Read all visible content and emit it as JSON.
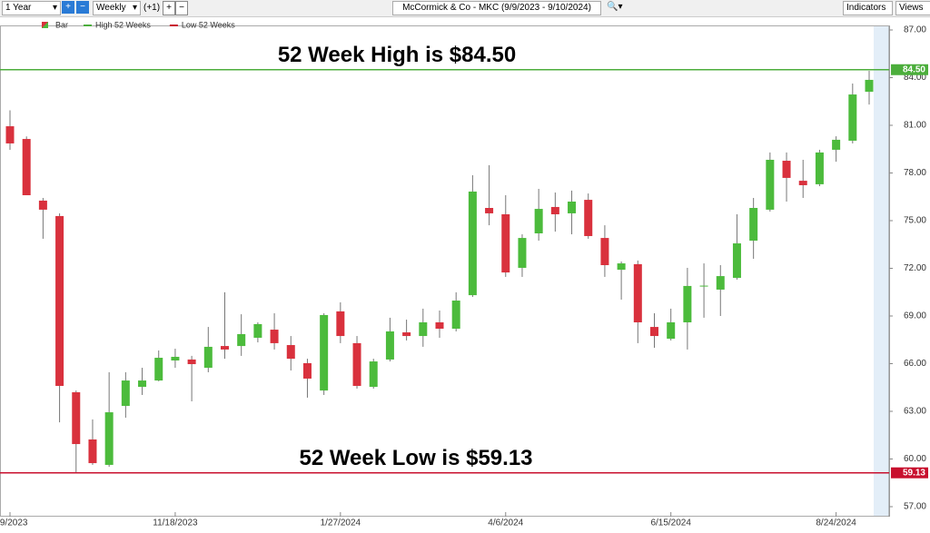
{
  "toolbar": {
    "range": "1 Year",
    "interval": "Weekly",
    "plus": "(+1)",
    "symbol": "McCormick & Co - MKC (9/9/2023 - 9/10/2024)",
    "indicators": "Indicators",
    "views": "Views"
  },
  "chart_data": {
    "type": "candlestick",
    "up_color": "#4cbb3c",
    "down_color": "#d9313d",
    "categories": [
      "9/9/2023",
      null,
      null,
      null,
      null,
      null,
      null,
      null,
      null,
      null,
      "11/18/2023",
      null,
      null,
      null,
      null,
      null,
      null,
      null,
      null,
      null,
      "1/27/2024",
      null,
      null,
      null,
      null,
      null,
      null,
      null,
      null,
      null,
      "4/6/2024",
      null,
      null,
      null,
      null,
      null,
      null,
      null,
      null,
      null,
      "6/15/2024",
      null,
      null,
      null,
      null,
      null,
      null,
      null,
      null,
      null,
      "8/24/2024",
      null,
      null
    ],
    "series": [
      {
        "name": "Bar",
        "open": [
          80.94,
          80.14,
          76.26,
          75.29,
          64.2,
          61.23,
          59.63,
          63.34,
          64.54,
          64.94,
          66.2,
          66.26,
          65.74,
          67.11,
          67.11,
          67.63,
          68.14,
          67.17,
          66.03,
          64.31,
          69.29,
          67.29,
          64.54,
          66.26,
          67.97,
          67.74,
          68.6,
          68.2,
          70.31,
          75.8,
          75.4,
          72.03,
          74.2,
          75.86,
          75.46,
          76.31,
          73.91,
          71.91,
          72.26,
          68.31,
          67.57,
          68.6,
          70.89,
          70.66,
          71.4,
          73.74,
          75.69,
          78.77,
          77.51,
          77.29,
          79.46,
          80.03,
          83.11
        ],
        "high": [
          81.94,
          80.3,
          76.43,
          75.46,
          64.31,
          62.49,
          65.46,
          65.46,
          65.74,
          66.83,
          66.94,
          66.49,
          68.31,
          70.49,
          69.11,
          68.6,
          69.17,
          67.74,
          66.31,
          69.17,
          69.86,
          67.74,
          66.31,
          68.89,
          68.77,
          69.46,
          69.34,
          70.49,
          77.86,
          78.49,
          76.6,
          74.14,
          77.0,
          76.77,
          76.89,
          76.71,
          74.71,
          72.43,
          72.49,
          69.17,
          69.46,
          72.03,
          72.31,
          72.2,
          75.4,
          76.43,
          79.29,
          79.29,
          78.83,
          79.46,
          80.31,
          83.63,
          84.43
        ],
        "low": [
          79.46,
          76.6,
          73.86,
          62.31,
          59.17,
          59.63,
          59.51,
          62.6,
          64.03,
          64.89,
          65.74,
          63.63,
          65.46,
          66.31,
          66.49,
          67.34,
          66.89,
          65.57,
          63.86,
          64.03,
          67.29,
          64.43,
          64.43,
          66.14,
          67.46,
          67.06,
          67.63,
          68.03,
          70.2,
          74.71,
          71.46,
          71.46,
          73.74,
          74.31,
          74.14,
          73.86,
          71.46,
          70.03,
          67.29,
          67.0,
          67.46,
          66.89,
          68.89,
          69.0,
          71.29,
          72.6,
          75.57,
          76.2,
          76.43,
          77.17,
          78.71,
          79.86,
          82.31
        ],
        "close": [
          79.86,
          76.6,
          75.69,
          64.6,
          60.94,
          59.74,
          62.94,
          64.94,
          64.94,
          66.37,
          66.43,
          65.97,
          67.06,
          66.89,
          67.86,
          68.49,
          67.29,
          66.31,
          65.06,
          69.06,
          67.74,
          64.6,
          66.14,
          68.03,
          67.74,
          68.6,
          68.2,
          69.97,
          76.83,
          75.46,
          71.74,
          73.91,
          75.74,
          75.4,
          76.2,
          74.03,
          72.2,
          72.31,
          68.6,
          67.74,
          68.6,
          70.89,
          70.91,
          71.51,
          73.57,
          75.8,
          78.83,
          77.69,
          77.23,
          79.29,
          80.09,
          82.94,
          83.86
        ]
      }
    ],
    "hlines": [
      {
        "name": "High 52 Weeks",
        "value": 84.5,
        "label": "84.50",
        "color": "#4cae3c",
        "annotation": "52 Week High is $84.50"
      },
      {
        "name": "Low 52 Weeks",
        "value": 59.13,
        "label": "59.13",
        "color": "#c8102e",
        "annotation": "52 Week Low is $59.13"
      }
    ],
    "ylim": [
      57,
      87
    ],
    "yticks": [
      {
        "value": 57,
        "label": "57.00"
      },
      {
        "value": 60,
        "label": "60.00"
      },
      {
        "value": 63,
        "label": "63.00"
      },
      {
        "value": 66,
        "label": "66.00"
      },
      {
        "value": 69,
        "label": "69.00"
      },
      {
        "value": 72,
        "label": "72.00"
      },
      {
        "value": 75,
        "label": "75.00"
      },
      {
        "value": 78,
        "label": "78.00"
      },
      {
        "value": 81,
        "label": "81.00"
      },
      {
        "value": 84,
        "label": "84.00"
      },
      {
        "value": 87,
        "label": "87.00"
      }
    ],
    "grid": false
  }
}
